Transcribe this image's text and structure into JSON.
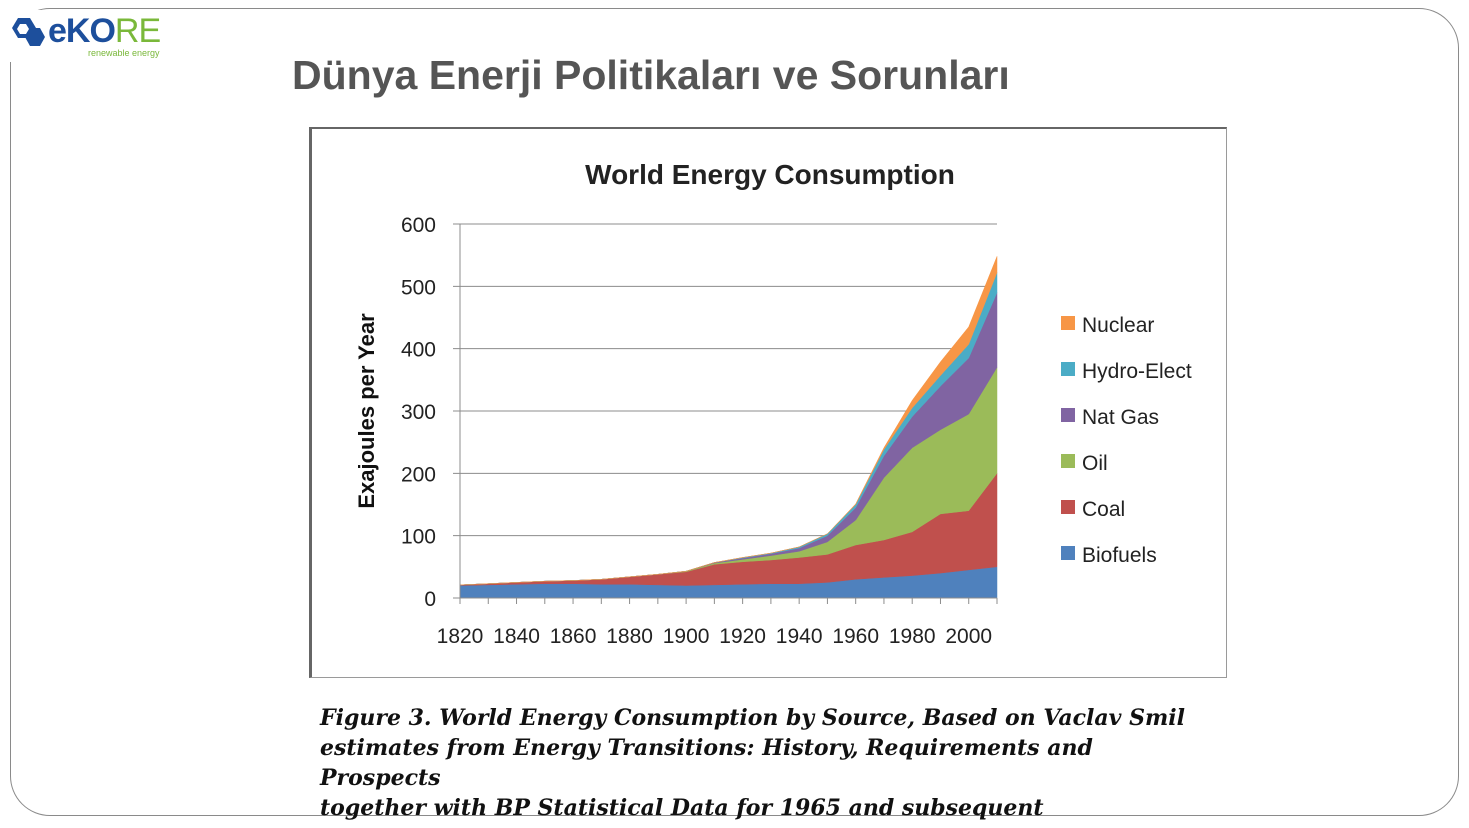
{
  "logo": {
    "brand_a": "eKO",
    "brand_b": "RE",
    "tagline": "renewable energy",
    "colors": {
      "blue": "#1d4f9c",
      "green": "#7ab83a"
    }
  },
  "page": {
    "title": "Dünya Enerji Politikaları ve Sorunları"
  },
  "caption": {
    "lines": [
      "Figure 3. World Energy Consumption by Source, Based on Vaclav Smil",
      "estimates from Energy Transitions: History, Requirements and",
      "Prospects",
      "together with BP Statistical Data for 1965 and subsequent"
    ]
  },
  "chart_data": {
    "type": "area",
    "stacked": true,
    "title": "World Energy Consumption",
    "xlabel": "",
    "ylabel": "Exajoules per Year",
    "ylim": [
      0,
      600
    ],
    "yticks": [
      0,
      100,
      200,
      300,
      400,
      500,
      600
    ],
    "xlim": [
      1820,
      2010
    ],
    "xticks": [
      1820,
      1840,
      1860,
      1880,
      1900,
      1920,
      1940,
      1960,
      1980,
      2000
    ],
    "grid": true,
    "legend_position": "right",
    "x": [
      1820,
      1830,
      1840,
      1850,
      1860,
      1870,
      1880,
      1890,
      1900,
      1910,
      1920,
      1930,
      1940,
      1950,
      1960,
      1970,
      1980,
      1990,
      2000,
      2010
    ],
    "series": [
      {
        "name": "Biofuels",
        "color": "#4f81bd",
        "values": [
          20,
          21,
          22,
          23,
          23,
          22,
          22,
          21,
          20,
          21,
          22,
          23,
          23,
          25,
          30,
          33,
          36,
          40,
          45,
          50
        ]
      },
      {
        "name": "Coal",
        "color": "#c0504d",
        "values": [
          1,
          2,
          3,
          4,
          5,
          8,
          12,
          17,
          22,
          33,
          36,
          38,
          42,
          45,
          55,
          60,
          70,
          95,
          95,
          150
        ]
      },
      {
        "name": "Oil",
        "color": "#9bbb59",
        "values": [
          0,
          0,
          0,
          0,
          0,
          0,
          0,
          0,
          1,
          2,
          4,
          7,
          10,
          20,
          40,
          100,
          135,
          135,
          155,
          170
        ]
      },
      {
        "name": "Nat Gas",
        "color": "#8064a2",
        "values": [
          0,
          0,
          0,
          0,
          0,
          0,
          0,
          0,
          0,
          1,
          2,
          3,
          5,
          10,
          20,
          35,
          50,
          70,
          90,
          120
        ]
      },
      {
        "name": "Hydro-Elect",
        "color": "#4bacc6",
        "values": [
          0,
          0,
          0,
          0,
          0,
          0,
          0,
          0,
          0,
          0,
          1,
          1,
          2,
          3,
          5,
          10,
          14,
          17,
          22,
          32
        ]
      },
      {
        "name": "Nuclear",
        "color": "#f79646",
        "values": [
          0,
          0,
          0,
          0,
          0,
          0,
          0,
          0,
          0,
          0,
          0,
          0,
          0,
          0,
          1,
          3,
          12,
          22,
          28,
          26
        ]
      }
    ]
  }
}
